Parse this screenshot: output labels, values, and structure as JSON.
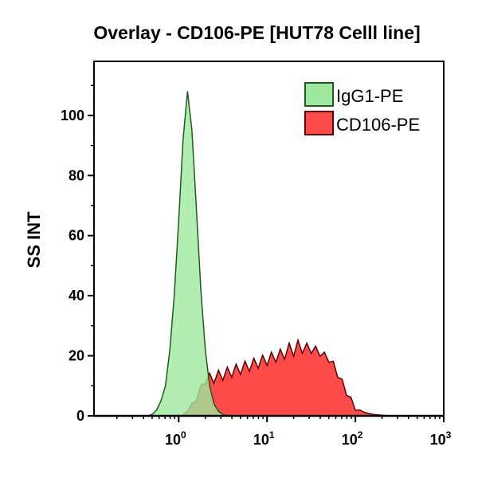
{
  "chart_data": {
    "type": "area",
    "title": "Overlay - CD106-PE [HUT78 Celll line]",
    "xlabel": "",
    "ylabel": "SS INT",
    "xscale": "log",
    "xlim": [
      0.11,
      1000
    ],
    "ylim": [
      0,
      118
    ],
    "x_ticks": [
      {
        "base": "10",
        "exp": "0",
        "value": 1
      },
      {
        "base": "10",
        "exp": "1",
        "value": 10
      },
      {
        "base": "10",
        "exp": "2",
        "value": 100
      },
      {
        "base": "10",
        "exp": "3",
        "value": 1000
      }
    ],
    "y_ticks": [
      "0",
      "20",
      "40",
      "60",
      "80",
      "100"
    ],
    "y_tick_values": [
      0,
      20,
      40,
      60,
      80,
      100
    ],
    "grid": false,
    "legend_position": "top-right",
    "series": [
      {
        "name": "IgG1-PE",
        "color": "#9fe89f",
        "edge": "#1f5a1f",
        "x": [
          0.398,
          0.447,
          0.501,
          0.562,
          0.631,
          0.708,
          0.794,
          0.891,
          1,
          1.12,
          1.26,
          1.41,
          1.58,
          1.78,
          2.0,
          2.24,
          2.51,
          2.82,
          3.16,
          3.55
        ],
        "y": [
          0,
          0,
          0.5,
          2,
          5,
          10,
          22,
          40,
          65,
          92,
          108,
          95,
          70,
          42,
          22,
          10,
          4,
          1.5,
          0.5,
          0
        ]
      },
      {
        "name": "CD106-PE",
        "color": "#ff4a4a",
        "edge": "#5a0000",
        "x": [
          1.12,
          1.26,
          1.41,
          1.58,
          1.78,
          2.0,
          2.24,
          2.51,
          2.82,
          3.16,
          3.55,
          3.98,
          4.47,
          5.01,
          5.62,
          6.31,
          7.08,
          7.94,
          8.91,
          10,
          11.2,
          12.6,
          14.1,
          15.8,
          17.8,
          20,
          22.4,
          25.1,
          28.2,
          31.6,
          35.5,
          39.8,
          44.7,
          50.1,
          56.2,
          63.1,
          70.8,
          79.4,
          89.1,
          100,
          112,
          126,
          141,
          158,
          200,
          251
        ],
        "y": [
          0.5,
          1.5,
          3,
          6,
          9,
          12,
          13,
          12,
          14,
          13,
          15,
          14,
          16,
          15,
          17,
          16,
          18,
          17,
          19,
          18,
          20,
          19,
          21,
          20,
          23,
          21,
          24,
          22,
          23,
          22,
          22,
          21,
          20,
          19,
          17,
          14,
          11,
          8,
          5,
          3,
          2,
          1.2,
          0.8,
          0.5,
          0.2,
          0
        ]
      }
    ]
  }
}
